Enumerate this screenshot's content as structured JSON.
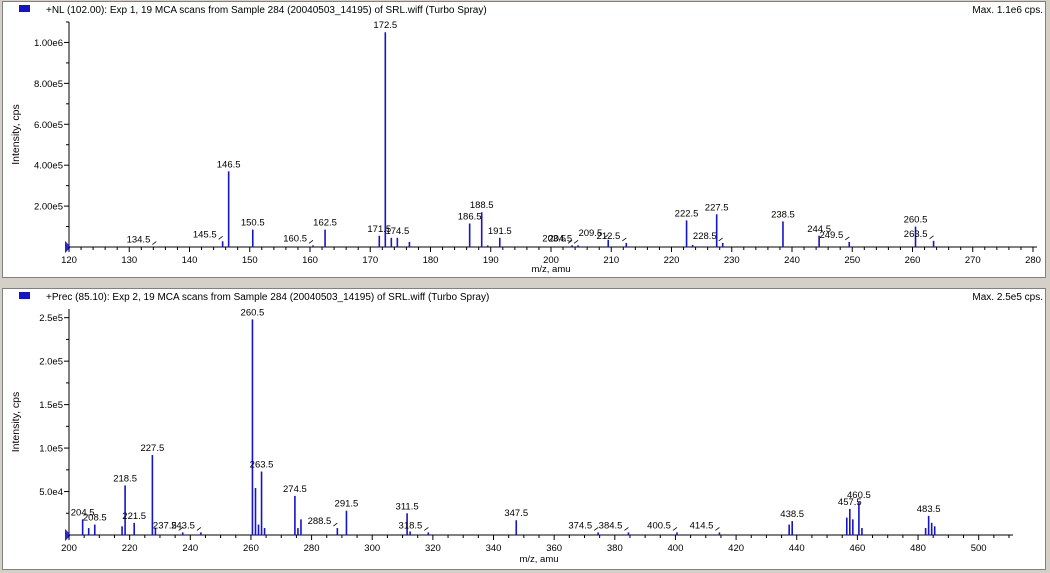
{
  "colors": {
    "peak": "#1414c8",
    "marker": "#1414c8",
    "axis": "#000000"
  },
  "panes": [
    {
      "title": "+NL (102.00): Exp 1, 19 MCA scans from Sample 284 (20040503_14195) of SRL.wiff (Turbo Spray)",
      "max_label": "Max. 1.1e6 cps."
    },
    {
      "title": "+Prec (85.10): Exp 2, 19 MCA scans from Sample 284 (20040503_14195) of SRL.wiff (Turbo Spray)",
      "max_label": "Max. 2.5e5 cps."
    }
  ],
  "chart_data": [
    {
      "type": "bar",
      "xlabel": "m/z, amu",
      "ylabel": "Intensity, cps",
      "xlim": [
        120,
        280
      ],
      "ylim": [
        0,
        1100000
      ],
      "x_ticks": [
        120,
        130,
        140,
        150,
        160,
        170,
        180,
        190,
        200,
        210,
        220,
        230,
        240,
        250,
        260,
        270,
        280
      ],
      "y_ticks": [
        200000,
        400000,
        600000,
        800000,
        1000000
      ],
      "y_tick_labels": [
        "2.00e5",
        "4.00e5",
        "6.00e5",
        "8.00e5",
        "1.00e6"
      ],
      "peaks": {
        "mz": [
          134.5,
          145.5,
          146.5,
          150.5,
          160.5,
          162.5,
          171.5,
          172.5,
          173.5,
          174.5,
          176.5,
          186.5,
          188.5,
          189.5,
          191.5,
          203.5,
          204.5,
          209.5,
          212.5,
          222.5,
          223.5,
          227.5,
          228.5,
          238.5,
          244.5,
          249.5,
          260.5,
          263.5
        ],
        "intensity": [
          2000,
          28000,
          370000,
          85000,
          8000,
          85000,
          55000,
          1050000,
          45000,
          45000,
          25000,
          115000,
          170000,
          8000,
          45000,
          8000,
          8000,
          35000,
          20000,
          130000,
          10000,
          160000,
          20000,
          125000,
          55000,
          25000,
          100000,
          30000
        ]
      },
      "peak_labels": [
        {
          "text": "134.5",
          "mz": 134.5,
          "intensity": 2000
        },
        {
          "text": "145.5",
          "mz": 145.5,
          "intensity": 28000
        },
        {
          "text": "146.5",
          "mz": 146.5,
          "intensity": 370000
        },
        {
          "text": "150.5",
          "mz": 150.5,
          "intensity": 85000
        },
        {
          "text": "160.5",
          "mz": 160.5,
          "intensity": 8000
        },
        {
          "text": "162.5",
          "mz": 162.5,
          "intensity": 85000
        },
        {
          "text": "171.5",
          "mz": 171.5,
          "intensity": 55000
        },
        {
          "text": "172.5",
          "mz": 172.5,
          "intensity": 1050000
        },
        {
          "text": "174.5",
          "mz": 174.5,
          "intensity": 45000
        },
        {
          "text": "186.5",
          "mz": 186.5,
          "intensity": 115000
        },
        {
          "text": "188.5",
          "mz": 188.5,
          "intensity": 170000
        },
        {
          "text": "191.5",
          "mz": 191.5,
          "intensity": 45000
        },
        {
          "text": "203.5",
          "mz": 203.5,
          "intensity": 8000
        },
        {
          "text": "204.5",
          "mz": 204.5,
          "intensity": 8000
        },
        {
          "text": "209.5",
          "mz": 209.5,
          "intensity": 35000
        },
        {
          "text": "212.5",
          "mz": 212.5,
          "intensity": 20000
        },
        {
          "text": "222.5",
          "mz": 222.5,
          "intensity": 130000
        },
        {
          "text": "227.5",
          "mz": 227.5,
          "intensity": 160000
        },
        {
          "text": "228.5",
          "mz": 228.5,
          "intensity": 20000
        },
        {
          "text": "238.5",
          "mz": 238.5,
          "intensity": 125000
        },
        {
          "text": "244.5",
          "mz": 244.5,
          "intensity": 55000
        },
        {
          "text": "249.5",
          "mz": 249.5,
          "intensity": 25000
        },
        {
          "text": "260.5",
          "mz": 260.5,
          "intensity": 100000
        },
        {
          "text": "263.5",
          "mz": 263.5,
          "intensity": 30000
        }
      ]
    },
    {
      "type": "bar",
      "xlabel": "m/z, amu",
      "ylabel": "Intensity, cps",
      "xlim": [
        200,
        510
      ],
      "ylim": [
        0,
        260000
      ],
      "x_ticks": [
        200,
        220,
        240,
        260,
        280,
        300,
        320,
        340,
        360,
        380,
        400,
        420,
        440,
        460,
        480,
        500
      ],
      "y_ticks": [
        50000,
        100000,
        150000,
        200000,
        250000
      ],
      "y_tick_labels": [
        "5.0e4",
        "1.0e5",
        "1.5e5",
        "2.0e5",
        "2.5e5"
      ],
      "peaks": {
        "mz": [
          204.5,
          206.5,
          208.5,
          217.5,
          218.5,
          221.5,
          227.5,
          228.5,
          237.5,
          243.5,
          260.5,
          261.5,
          262.5,
          263.5,
          264.5,
          274.5,
          275.5,
          276.5,
          288.5,
          291.5,
          311.5,
          312.5,
          318.5,
          347.5,
          374.5,
          384.5,
          400.5,
          414.5,
          437.5,
          438.5,
          456.5,
          457.5,
          458.5,
          460.5,
          461.5,
          482.5,
          483.5,
          484.5,
          485.5
        ],
        "intensity": [
          18000,
          8000,
          12000,
          10000,
          57000,
          14000,
          92000,
          8000,
          3000,
          3000,
          248000,
          54000,
          12000,
          73000,
          8000,
          45000,
          8000,
          18000,
          8000,
          28000,
          25000,
          4000,
          3000,
          17000,
          3000,
          3000,
          3000,
          3000,
          12000,
          16000,
          20000,
          30000,
          18000,
          38000,
          8000,
          8000,
          22000,
          14000,
          10000
        ]
      },
      "peak_labels": [
        {
          "text": "204.5",
          "mz": 204.5,
          "intensity": 18000
        },
        {
          "text": "208.5",
          "mz": 208.5,
          "intensity": 12000
        },
        {
          "text": "218.5",
          "mz": 218.5,
          "intensity": 57000
        },
        {
          "text": "221.5",
          "mz": 221.5,
          "intensity": 14000
        },
        {
          "text": "227.5",
          "mz": 227.5,
          "intensity": 92000
        },
        {
          "text": "237.5",
          "mz": 237.5,
          "intensity": 3000
        },
        {
          "text": "243.5",
          "mz": 243.5,
          "intensity": 3000
        },
        {
          "text": "260.5",
          "mz": 260.5,
          "intensity": 248000
        },
        {
          "text": "263.5",
          "mz": 263.5,
          "intensity": 73000
        },
        {
          "text": "274.5",
          "mz": 274.5,
          "intensity": 45000
        },
        {
          "text": "288.5",
          "mz": 288.5,
          "intensity": 8000
        },
        {
          "text": "291.5",
          "mz": 291.5,
          "intensity": 28000
        },
        {
          "text": "311.5",
          "mz": 311.5,
          "intensity": 25000
        },
        {
          "text": "318.5",
          "mz": 318.5,
          "intensity": 3000
        },
        {
          "text": "347.5",
          "mz": 347.5,
          "intensity": 17000
        },
        {
          "text": "374.5",
          "mz": 374.5,
          "intensity": 3000
        },
        {
          "text": "384.5",
          "mz": 384.5,
          "intensity": 3000
        },
        {
          "text": "400.5",
          "mz": 400.5,
          "intensity": 3000
        },
        {
          "text": "414.5",
          "mz": 414.5,
          "intensity": 3000
        },
        {
          "text": "438.5",
          "mz": 438.5,
          "intensity": 16000
        },
        {
          "text": "457.5",
          "mz": 457.5,
          "intensity": 30000
        },
        {
          "text": "460.5",
          "mz": 460.5,
          "intensity": 38000
        },
        {
          "text": "483.5",
          "mz": 483.5,
          "intensity": 22000
        }
      ]
    }
  ]
}
